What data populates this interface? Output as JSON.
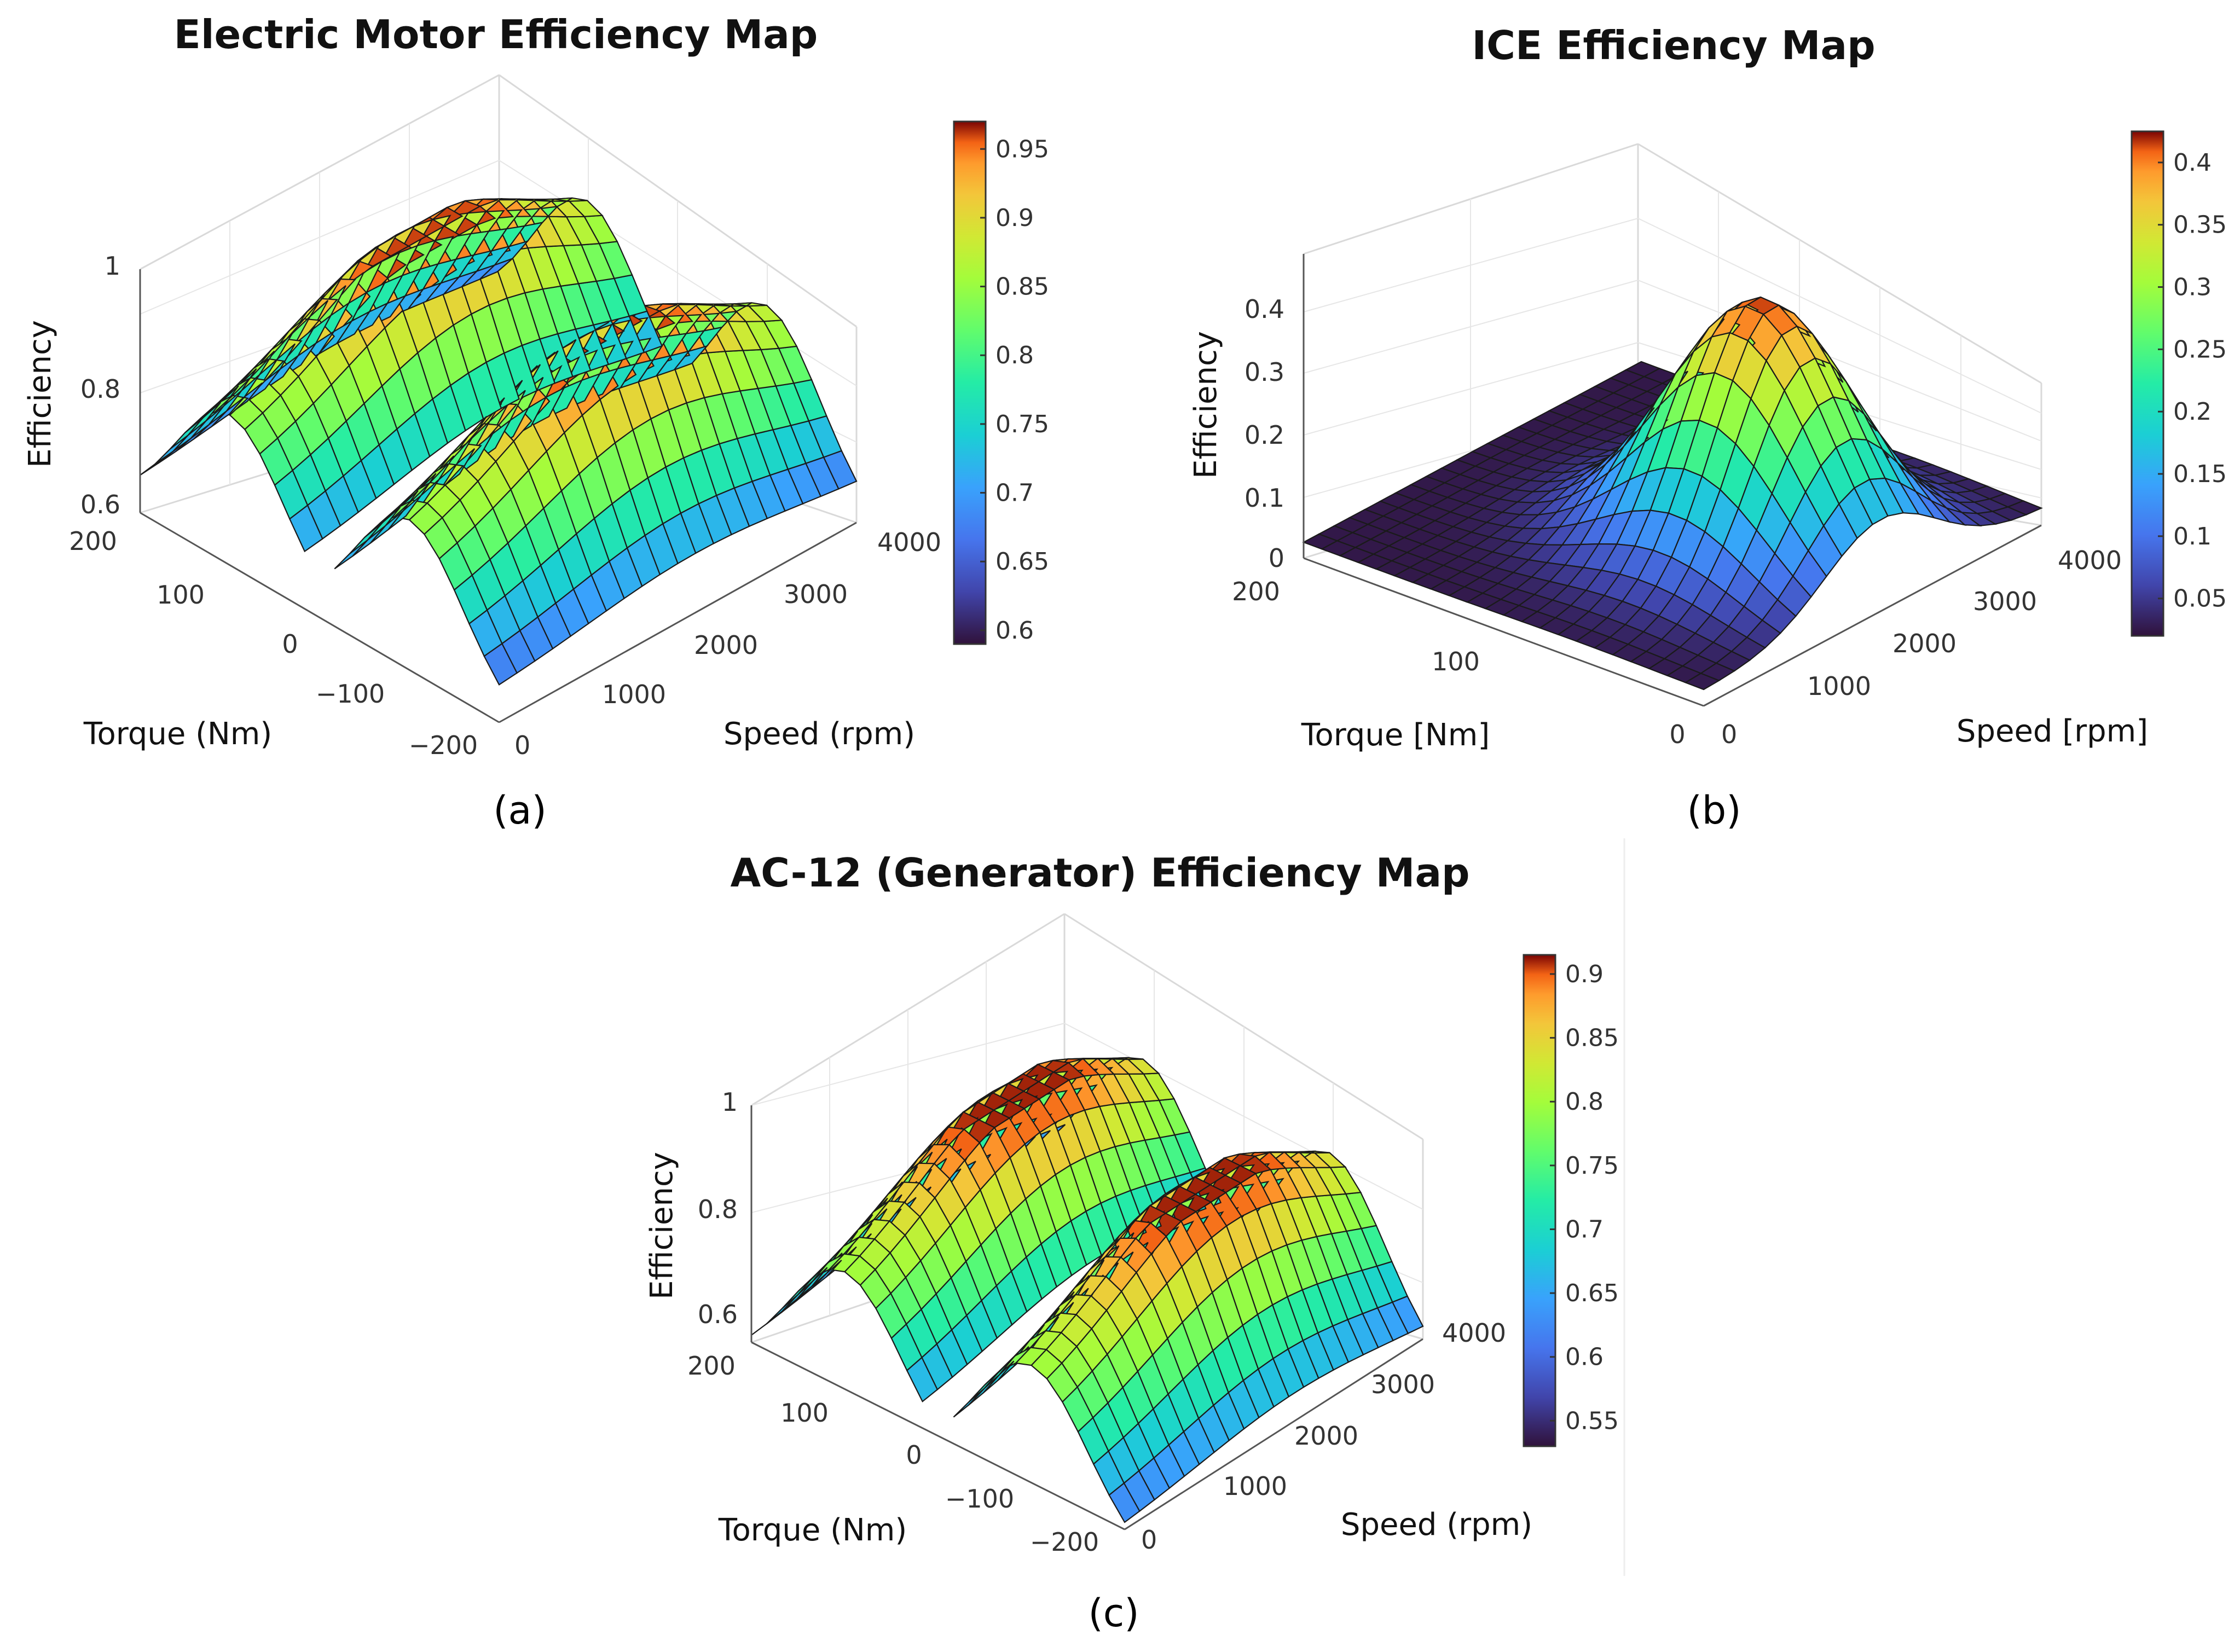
{
  "chart_data": [
    {
      "type": "surface",
      "title": "Electric Motor Efficiency Map",
      "panel_label": "(a)",
      "xlabel": "Torque (Nm)",
      "ylabel": "Speed (rpm)",
      "zlabel": "Efficiency",
      "x_ticks": [
        "200",
        "100",
        "0",
        "−100",
        "−200"
      ],
      "y_ticks": [
        "0",
        "1000",
        "2000",
        "3000",
        "4000"
      ],
      "z_ticks": [
        "0.6",
        "0.8",
        "1"
      ],
      "xlim": [
        -200,
        200
      ],
      "ylim": [
        0,
        4000
      ],
      "zlim": [
        0.6,
        1.0
      ],
      "colorbar": {
        "min": 0.59,
        "max": 0.97,
        "ticks": [
          "0.6",
          "0.65",
          "0.7",
          "0.75",
          "0.8",
          "0.85",
          "0.9",
          "0.95"
        ]
      },
      "surface_model": {
        "peak": 0.96,
        "base": 0.6,
        "torque_scale": 100,
        "speed_peak": 2200,
        "speed_scale": 1700,
        "gap_half_width": 14
      },
      "colormap": "turbo"
    },
    {
      "type": "surface",
      "title": "ICE Efficiency Map",
      "panel_label": "(b)",
      "xlabel": "Torque [Nm]",
      "ylabel": "Speed [rpm]",
      "zlabel": "Efficiency",
      "x_ticks": [
        "200",
        "100",
        "0"
      ],
      "y_ticks": [
        "0",
        "1000",
        "2000",
        "3000",
        "4000"
      ],
      "z_ticks": [
        "0",
        "0.1",
        "0.2",
        "0.3",
        "0.4"
      ],
      "xlim": [
        0,
        200
      ],
      "ylim": [
        0,
        4000
      ],
      "zlim": [
        0,
        0.48
      ],
      "colorbar": {
        "min": 0.02,
        "max": 0.425,
        "ticks": [
          "0.05",
          "0.1",
          "0.15",
          "0.2",
          "0.25",
          "0.3",
          "0.35",
          "0.4"
        ]
      },
      "surface_model": {
        "peak": 0.42,
        "base": 0.025,
        "torque_center": 140,
        "torque_scale": 55,
        "speed_center": 2100,
        "speed_scale": 950
      },
      "colormap": "turbo"
    },
    {
      "type": "surface",
      "title": "AC-12 (Generator) Efficiency Map",
      "panel_label": "(c)",
      "xlabel": "Torque (Nm)",
      "ylabel": "Speed (rpm)",
      "zlabel": "Efficiency",
      "x_ticks": [
        "200",
        "100",
        "0",
        "−100",
        "−200"
      ],
      "y_ticks": [
        "0",
        "1000",
        "2000",
        "3000",
        "4000"
      ],
      "z_ticks": [
        "0.6",
        "0.8",
        "1"
      ],
      "xlim": [
        -200,
        200
      ],
      "ylim": [
        0,
        4000
      ],
      "zlim": [
        0.6,
        1.0
      ],
      "colorbar": {
        "min": 0.53,
        "max": 0.915,
        "ticks": [
          "0.55",
          "0.6",
          "0.65",
          "0.7",
          "0.75",
          "0.8",
          "0.85",
          "0.9"
        ]
      },
      "surface_model": {
        "peak": 0.91,
        "base": 0.55,
        "torque_scale": 100,
        "speed_peak": 2300,
        "speed_scale": 1800,
        "gap_half_width": 12
      },
      "colormap": "turbo"
    }
  ]
}
